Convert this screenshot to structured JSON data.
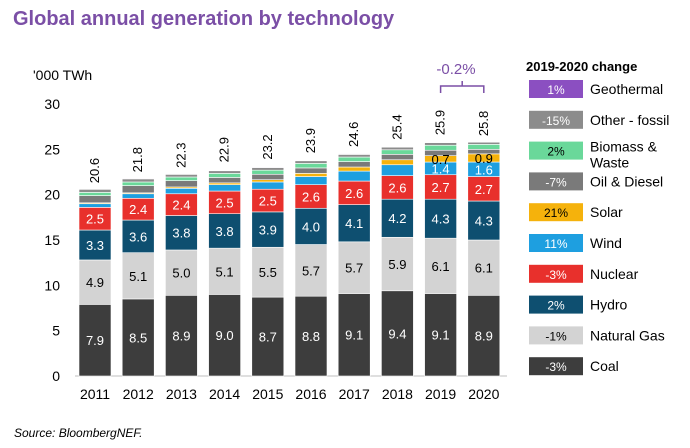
{
  "title": "Global annual generation by technology",
  "source": "Source: BloombergNEF.",
  "chart_data": {
    "type": "bar",
    "stacked": true,
    "yunit": "'000 TWh",
    "ylim": [
      0,
      30
    ],
    "yticks": [
      0,
      5,
      10,
      15,
      20,
      25,
      30
    ],
    "categories": [
      "2011",
      "2012",
      "2013",
      "2014",
      "2015",
      "2016",
      "2017",
      "2018",
      "2019",
      "2020"
    ],
    "totals": [
      20.6,
      21.8,
      22.3,
      22.9,
      23.2,
      23.9,
      24.6,
      25.4,
      25.9,
      25.8
    ],
    "total_change_label": "-0.2%",
    "series": [
      {
        "name": "Coal",
        "color": "#3d3d3d",
        "change": "-3%",
        "values": [
          7.9,
          8.5,
          8.9,
          9.0,
          8.7,
          8.8,
          9.1,
          9.4,
          9.1,
          8.9
        ],
        "labels": [
          true,
          true,
          true,
          true,
          true,
          true,
          true,
          true,
          true,
          true
        ]
      },
      {
        "name": "Natural Gas",
        "color": "#d3d3d3",
        "change": "-1%",
        "values": [
          4.9,
          5.1,
          5.0,
          5.1,
          5.5,
          5.7,
          5.7,
          5.9,
          6.1,
          6.1
        ],
        "labels": [
          true,
          true,
          true,
          true,
          true,
          true,
          true,
          true,
          true,
          true
        ]
      },
      {
        "name": "Hydro",
        "color": "#0e4f70",
        "change": "2%",
        "values": [
          3.3,
          3.6,
          3.8,
          3.8,
          3.9,
          4.0,
          4.1,
          4.2,
          4.3,
          4.3
        ],
        "labels": [
          true,
          true,
          true,
          true,
          true,
          true,
          true,
          true,
          true,
          true
        ]
      },
      {
        "name": "Nuclear",
        "color": "#e8302c",
        "change": "-3%",
        "values": [
          2.5,
          2.4,
          2.4,
          2.5,
          2.5,
          2.6,
          2.6,
          2.6,
          2.7,
          2.7
        ],
        "labels": [
          true,
          true,
          true,
          true,
          true,
          true,
          true,
          true,
          true,
          true
        ]
      },
      {
        "name": "Wind",
        "color": "#1e9fe0",
        "change": "11%",
        "values": [
          0.4,
          0.5,
          0.6,
          0.7,
          0.8,
          0.9,
          1.1,
          1.2,
          1.4,
          1.6
        ],
        "labels": [
          false,
          false,
          false,
          false,
          false,
          false,
          false,
          false,
          true,
          true
        ]
      },
      {
        "name": "Solar",
        "color": "#f5b20c",
        "change": "21%",
        "values": [
          0.1,
          0.1,
          0.15,
          0.2,
          0.25,
          0.35,
          0.45,
          0.55,
          0.7,
          0.9
        ],
        "labels": [
          false,
          false,
          false,
          false,
          false,
          false,
          false,
          false,
          true,
          true
        ]
      },
      {
        "name": "Oil & Diesel",
        "color": "#7a7a7a",
        "change": "-7%",
        "values": [
          0.8,
          0.8,
          0.7,
          0.6,
          0.6,
          0.6,
          0.6,
          0.6,
          0.6,
          0.5
        ],
        "labels": [
          false,
          false,
          false,
          false,
          false,
          false,
          false,
          false,
          false,
          false
        ]
      },
      {
        "name": "Biomass & Waste",
        "color": "#6ad89a",
        "change": "2%",
        "values": [
          0.35,
          0.4,
          0.4,
          0.45,
          0.45,
          0.5,
          0.5,
          0.5,
          0.55,
          0.55
        ],
        "labels": [
          false,
          false,
          false,
          false,
          false,
          false,
          false,
          false,
          false,
          false
        ]
      },
      {
        "name": "Other - fossil",
        "color": "#8c8c8c",
        "change": "-15%",
        "values": [
          0.35,
          0.35,
          0.3,
          0.3,
          0.3,
          0.3,
          0.3,
          0.3,
          0.3,
          0.25
        ],
        "labels": [
          false,
          false,
          false,
          false,
          false,
          false,
          false,
          false,
          false,
          false
        ]
      },
      {
        "name": "Geothermal",
        "color": "#8b4fc1",
        "change": "1%",
        "values": [
          0.05,
          0.05,
          0.05,
          0.05,
          0.05,
          0.05,
          0.05,
          0.05,
          0.05,
          0.05
        ],
        "labels": [
          false,
          false,
          false,
          false,
          false,
          false,
          false,
          false,
          false,
          false
        ]
      }
    ],
    "legend": {
      "title": "2019-2020 change",
      "placement": "right",
      "order": [
        "Geothermal",
        "Other - fossil",
        "Biomass & Waste",
        "Oil & Diesel",
        "Solar",
        "Wind",
        "Nuclear",
        "Hydro",
        "Natural Gas",
        "Coal"
      ]
    }
  }
}
